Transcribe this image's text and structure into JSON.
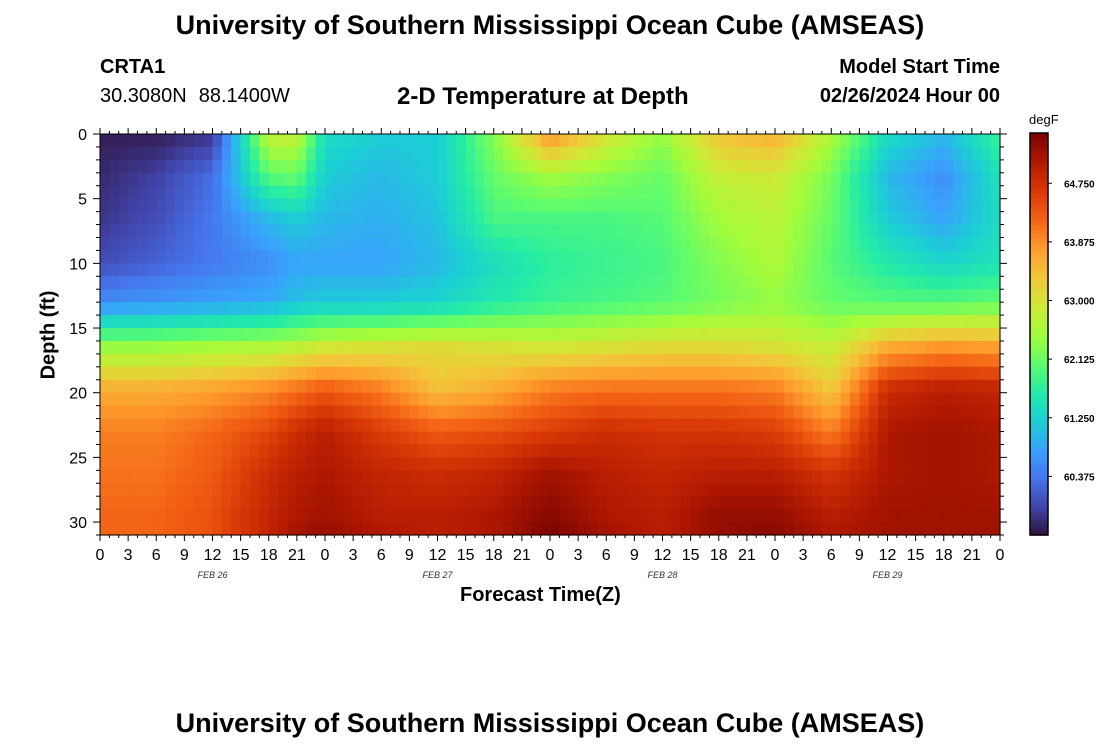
{
  "page_title": "University of Southern Mississippi Ocean Cube (AMSEAS)",
  "station": {
    "id": "CRTA1",
    "lat": "30.3080N",
    "lon": "88.1400W"
  },
  "model_start": {
    "label": "Model Start Time",
    "value": "02/26/2024 Hour 00"
  },
  "bottom_title": "University of Southern Mississippi Ocean Cube (AMSEAS)",
  "chart_data": {
    "type": "heatmap",
    "title": "2-D Temperature at Depth",
    "xlabel": "Forecast Time(Z)",
    "ylabel": "Depth (ft)",
    "x_hours_range": [
      0,
      96
    ],
    "x_ticks": [
      {
        "hour": 0,
        "label": "0"
      },
      {
        "hour": 3,
        "label": "3"
      },
      {
        "hour": 6,
        "label": "6"
      },
      {
        "hour": 9,
        "label": "9"
      },
      {
        "hour": 12,
        "label": "12"
      },
      {
        "hour": 15,
        "label": "15"
      },
      {
        "hour": 18,
        "label": "18"
      },
      {
        "hour": 21,
        "label": "21"
      },
      {
        "hour": 24,
        "label": "0"
      },
      {
        "hour": 27,
        "label": "3"
      },
      {
        "hour": 30,
        "label": "6"
      },
      {
        "hour": 33,
        "label": "9"
      },
      {
        "hour": 36,
        "label": "12"
      },
      {
        "hour": 39,
        "label": "15"
      },
      {
        "hour": 42,
        "label": "18"
      },
      {
        "hour": 45,
        "label": "21"
      },
      {
        "hour": 48,
        "label": "0"
      },
      {
        "hour": 51,
        "label": "3"
      },
      {
        "hour": 54,
        "label": "6"
      },
      {
        "hour": 57,
        "label": "9"
      },
      {
        "hour": 60,
        "label": "12"
      },
      {
        "hour": 63,
        "label": "15"
      },
      {
        "hour": 66,
        "label": "18"
      },
      {
        "hour": 69,
        "label": "21"
      },
      {
        "hour": 72,
        "label": "0"
      },
      {
        "hour": 75,
        "label": "3"
      },
      {
        "hour": 78,
        "label": "6"
      },
      {
        "hour": 81,
        "label": "9"
      },
      {
        "hour": 84,
        "label": "12"
      },
      {
        "hour": 87,
        "label": "15"
      },
      {
        "hour": 90,
        "label": "18"
      },
      {
        "hour": 93,
        "label": "21"
      },
      {
        "hour": 96,
        "label": "0"
      }
    ],
    "date_labels": [
      {
        "hour": 12,
        "label": "FEB 26"
      },
      {
        "hour": 36,
        "label": "FEB 27"
      },
      {
        "hour": 60,
        "label": "FEB 28"
      },
      {
        "hour": 84,
        "label": "FEB 29"
      }
    ],
    "y_range": [
      0,
      31
    ],
    "y_ticks": [
      0,
      5,
      10,
      15,
      20,
      25,
      30
    ],
    "colorbar": {
      "unit": "degF",
      "min": 59.5,
      "max": 65.5,
      "ticks": [
        {
          "value": 60.375,
          "label": "60.375"
        },
        {
          "value": 61.25,
          "label": "61.250"
        },
        {
          "value": 62.125,
          "label": "62.125"
        },
        {
          "value": 63.0,
          "label": "63.000"
        },
        {
          "value": 63.875,
          "label": "63.875"
        },
        {
          "value": 64.75,
          "label": "64.750"
        }
      ],
      "colors": [
        "#30123b",
        "#4145ab",
        "#4675ed",
        "#39a2fc",
        "#1bcfd4",
        "#24eca6",
        "#61fc6c",
        "#a4fc3b",
        "#d1e834",
        "#f3c63a",
        "#fe9b2d",
        "#f36315",
        "#d93806",
        "#b11901",
        "#7a0402"
      ]
    },
    "depth_levels_ft": [
      0,
      3.3,
      6.6,
      10,
      13.1,
      16.4,
      19.7,
      23,
      26.2,
      29.5,
      31
    ],
    "time_hours": [
      0,
      6,
      12,
      18,
      21,
      24,
      30,
      36,
      42,
      48,
      54,
      60,
      66,
      72,
      78,
      84,
      90,
      96
    ],
    "temperature_degF": [
      [
        59.6,
        59.6,
        59.8,
        62.8,
        62.8,
        61.4,
        61.2,
        61.2,
        62.3,
        63.9,
        63.0,
        62.4,
        63.4,
        63.6,
        62.6,
        61.4,
        61.0,
        61.8
      ],
      [
        59.7,
        59.9,
        60.3,
        62.0,
        62.1,
        61.2,
        61.0,
        61.2,
        62.1,
        62.5,
        62.3,
        62.1,
        62.8,
        62.9,
        62.2,
        61.0,
        60.6,
        61.5
      ],
      [
        59.8,
        60.0,
        60.4,
        61.0,
        61.2,
        61.0,
        60.9,
        61.1,
        61.9,
        61.9,
        61.9,
        62.0,
        62.5,
        62.7,
        62.1,
        61.2,
        60.8,
        61.4
      ],
      [
        60.0,
        60.2,
        60.4,
        60.6,
        60.8,
        60.8,
        60.8,
        61.0,
        61.4,
        61.7,
        61.8,
        61.9,
        62.3,
        62.6,
        62.0,
        61.6,
        61.3,
        61.5
      ],
      [
        60.6,
        60.7,
        60.8,
        60.9,
        61.1,
        61.2,
        61.2,
        61.3,
        61.6,
        61.8,
        61.9,
        62.0,
        62.2,
        62.4,
        62.1,
        62.0,
        62.0,
        62.1
      ],
      [
        62.4,
        62.4,
        62.5,
        62.6,
        62.7,
        62.9,
        63.0,
        63.1,
        63.0,
        62.9,
        63.0,
        63.1,
        63.1,
        63.0,
        62.8,
        63.6,
        63.8,
        63.7
      ],
      [
        63.6,
        63.6,
        63.7,
        63.9,
        64.1,
        64.3,
        64.0,
        63.4,
        63.6,
        64.0,
        64.1,
        64.1,
        64.1,
        64.0,
        63.3,
        64.8,
        65.0,
        64.9
      ],
      [
        64.0,
        64.0,
        64.2,
        64.5,
        64.8,
        65.0,
        64.6,
        64.3,
        64.4,
        64.6,
        64.8,
        64.7,
        64.7,
        64.6,
        64.0,
        65.1,
        65.2,
        65.1
      ],
      [
        64.1,
        64.1,
        64.3,
        64.8,
        65.0,
        65.1,
        64.9,
        64.8,
        64.9,
        65.2,
        65.0,
        64.9,
        65.0,
        65.0,
        64.7,
        65.1,
        65.2,
        65.1
      ],
      [
        64.2,
        64.2,
        64.4,
        64.9,
        65.1,
        65.2,
        65.0,
        65.0,
        65.1,
        65.4,
        65.1,
        65.0,
        65.3,
        65.3,
        65.0,
        65.2,
        65.2,
        65.2
      ],
      [
        64.2,
        64.2,
        64.4,
        64.9,
        65.2,
        65.3,
        65.1,
        65.0,
        65.1,
        65.5,
        65.2,
        65.0,
        65.3,
        65.4,
        65.1,
        65.2,
        65.2,
        65.2
      ]
    ]
  }
}
